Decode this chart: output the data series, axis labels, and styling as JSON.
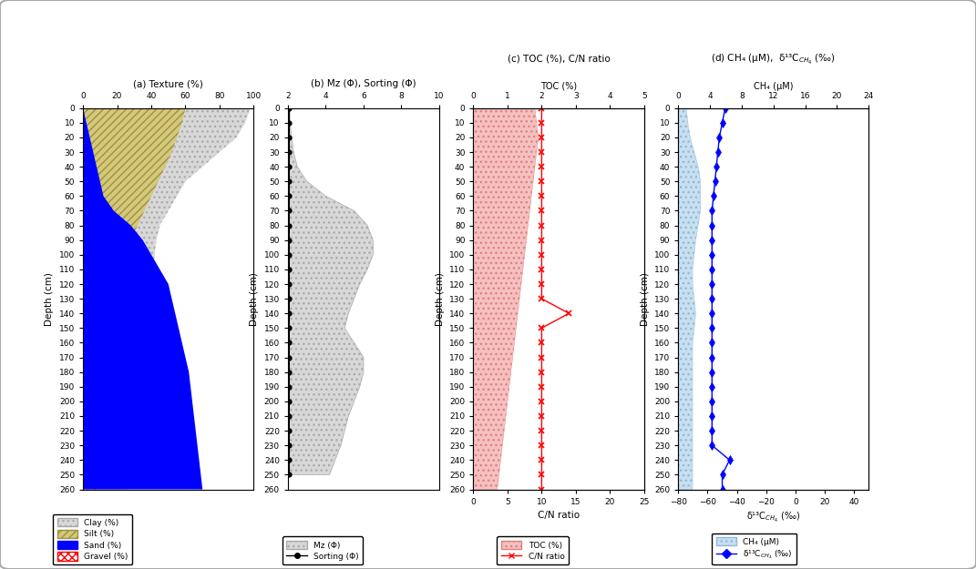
{
  "depth": [
    0,
    10,
    20,
    30,
    40,
    50,
    60,
    70,
    80,
    90,
    100,
    110,
    120,
    130,
    140,
    150,
    160,
    170,
    180,
    190,
    200,
    210,
    220,
    230,
    240,
    250,
    260
  ],
  "clay_profile": [
    98,
    95,
    90,
    80,
    70,
    60,
    55,
    50,
    45,
    43,
    42,
    41,
    40,
    39,
    38,
    37,
    36,
    35,
    34,
    33,
    32,
    31,
    30,
    29,
    28,
    27,
    26
  ],
  "silt_profile": [
    60,
    58,
    55,
    52,
    48,
    44,
    40,
    36,
    32,
    28,
    26,
    24,
    22,
    21,
    20,
    19,
    18,
    17,
    16,
    15,
    14,
    13,
    12,
    11,
    10,
    9,
    8
  ],
  "sand_profile": [
    0,
    2,
    4,
    6,
    8,
    10,
    12,
    18,
    28,
    35,
    40,
    45,
    50,
    52,
    54,
    56,
    58,
    60,
    62,
    63,
    64,
    65,
    66,
    67,
    68,
    69,
    70
  ],
  "mz_depth": [
    0,
    10,
    20,
    30,
    40,
    50,
    60,
    70,
    80,
    90,
    100,
    110,
    120,
    130,
    140,
    150,
    160,
    170,
    180,
    190,
    200,
    210,
    220,
    230,
    240,
    250
  ],
  "mz_curve": [
    2.1,
    2.1,
    2.2,
    2.3,
    2.5,
    3.0,
    4.0,
    5.5,
    6.2,
    6.5,
    6.5,
    6.2,
    5.8,
    5.5,
    5.2,
    5.0,
    5.5,
    6.0,
    6.0,
    5.8,
    5.5,
    5.2,
    5.0,
    4.8,
    4.5,
    4.2
  ],
  "sorting_vals": [
    2.05,
    2.05,
    2.05,
    2.05,
    2.05,
    2.05,
    2.05,
    2.05,
    2.05,
    2.05,
    2.05,
    2.05,
    2.05,
    2.05,
    2.05,
    2.05,
    2.05,
    2.05,
    2.05,
    2.05,
    2.05,
    2.05,
    2.05,
    2.05,
    2.05,
    2.05
  ],
  "toc_depth": [
    0,
    10,
    20,
    30,
    40,
    50,
    60,
    70,
    80,
    90,
    100,
    110,
    120,
    130,
    140,
    150,
    160,
    170,
    180,
    190,
    200,
    210,
    220,
    230,
    240,
    250,
    260
  ],
  "toc": [
    1.8,
    1.85,
    1.9,
    1.85,
    1.8,
    1.75,
    1.7,
    1.65,
    1.6,
    1.55,
    1.5,
    1.45,
    1.4,
    1.35,
    1.3,
    1.25,
    1.2,
    1.15,
    1.1,
    1.05,
    1.0,
    0.95,
    0.9,
    0.85,
    0.8,
    0.75,
    0.7
  ],
  "cn_depth": [
    0,
    10,
    20,
    30,
    40,
    50,
    60,
    70,
    80,
    90,
    100,
    110,
    120,
    130,
    140,
    150,
    160,
    170,
    180,
    190,
    200,
    210,
    220,
    230,
    240,
    250,
    260
  ],
  "cn": [
    10,
    10,
    10,
    10,
    10,
    10,
    10,
    10,
    10,
    10,
    10,
    10,
    10,
    10,
    14,
    10,
    10,
    10,
    10,
    10,
    10,
    10,
    10,
    10,
    10,
    10,
    10
  ],
  "ch4_depth": [
    0,
    10,
    20,
    30,
    40,
    50,
    60,
    70,
    80,
    90,
    100,
    110,
    120,
    130,
    140,
    150,
    160,
    170,
    180,
    190,
    200,
    210,
    220,
    230,
    240,
    250,
    260
  ],
  "ch4": [
    1.0,
    1.2,
    1.5,
    2.0,
    2.5,
    2.8,
    2.8,
    2.8,
    2.5,
    2.2,
    2.0,
    1.8,
    1.8,
    2.0,
    2.2,
    2.0,
    1.8,
    1.8,
    1.8,
    1.8,
    1.8,
    1.8,
    1.8,
    1.8,
    1.8,
    1.8,
    1.8
  ],
  "d13c_depth": [
    0,
    10,
    20,
    30,
    40,
    50,
    60,
    70,
    80,
    90,
    100,
    110,
    120,
    130,
    140,
    150,
    160,
    170,
    180,
    190,
    200,
    210,
    220,
    230,
    240,
    250,
    260
  ],
  "d13c": [
    -48,
    -50,
    -52,
    -53,
    -54,
    -55,
    -56,
    -57,
    -57,
    -57,
    -57,
    -57,
    -57,
    -57,
    -57,
    -57,
    -57,
    -57,
    -57,
    -57,
    -57,
    -57,
    -57,
    -57,
    -45,
    -50,
    -50
  ],
  "panel_a_title": "(a) Texture (%)",
  "panel_b_title": "(b) Mz (Φ), Sorting (Φ)",
  "panel_c_title": "(c) TOC (%), C/N ratio",
  "panel_d_title": "(d) CH₄ (μM),  δ¹³C$_{CH_4}$ (‰)",
  "ylabel": "Depth (cm)",
  "depth_min": 0,
  "depth_max": 260
}
